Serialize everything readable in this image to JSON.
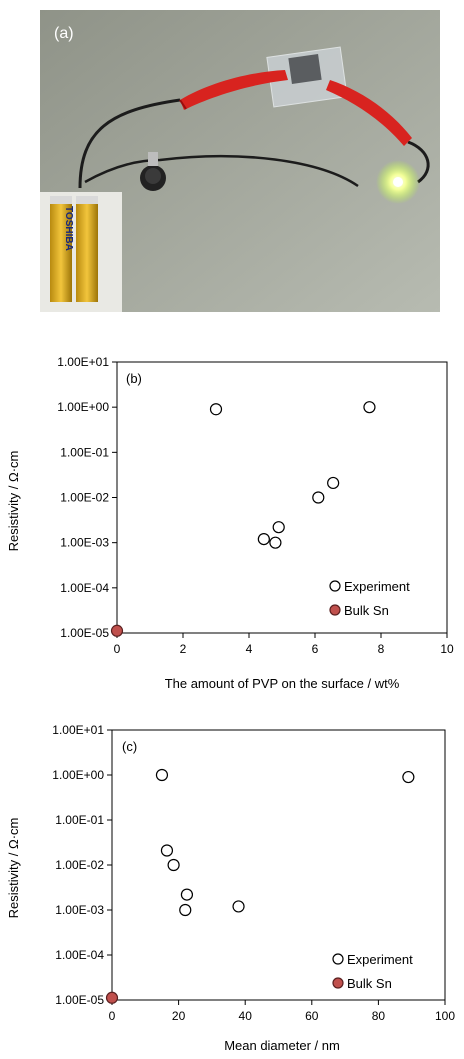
{
  "photo": {
    "panel_label": "(a)",
    "battery_text": "TOSHIBA"
  },
  "chart_data": [
    {
      "type": "scatter",
      "panel_label": "(b)",
      "xlabel": "The amount of PVP on the surface / wt%",
      "ylabel": "Resistivity / Ω·cm",
      "xlim": [
        0,
        10
      ],
      "ylim": [
        1e-05,
        10
      ],
      "y_scale": "log",
      "x_ticks": [
        "0",
        "2",
        "4",
        "6",
        "8",
        "10"
      ],
      "y_ticks": [
        "1.00E-05",
        "1.00E-04",
        "1.00E-03",
        "1.00E-02",
        "1.00E-01",
        "1.00E+00",
        "1.00E+01"
      ],
      "grid": false,
      "legend_position": "bottom-right",
      "series": [
        {
          "name": "Experiment",
          "marker": "open-circle",
          "color": "#000000",
          "points": [
            {
              "x": 3.0,
              "y": 0.9
            },
            {
              "x": 7.65,
              "y": 1.0
            },
            {
              "x": 6.55,
              "y": 0.021
            },
            {
              "x": 6.1,
              "y": 0.01
            },
            {
              "x": 4.9,
              "y": 0.0022
            },
            {
              "x": 4.45,
              "y": 0.0012
            },
            {
              "x": 4.8,
              "y": 0.001
            }
          ]
        },
        {
          "name": "Bulk Sn",
          "marker": "filled-circle",
          "color": "#c0504d",
          "points": [
            {
              "x": 0,
              "y": 1.12e-05
            }
          ]
        }
      ]
    },
    {
      "type": "scatter",
      "panel_label": "(c)",
      "xlabel": "Mean diameter / nm",
      "ylabel": "Resistivity / Ω·cm",
      "xlim": [
        0,
        100
      ],
      "ylim": [
        1e-05,
        10
      ],
      "y_scale": "log",
      "x_ticks": [
        "0",
        "20",
        "40",
        "60",
        "80",
        "100"
      ],
      "y_ticks": [
        "1.00E-05",
        "1.00E-04",
        "1.00E-03",
        "1.00E-02",
        "1.00E-01",
        "1.00E+00",
        "1.00E+01"
      ],
      "grid": false,
      "legend_position": "bottom-right",
      "series": [
        {
          "name": "Experiment",
          "marker": "open-circle",
          "color": "#000000",
          "points": [
            {
              "x": 15,
              "y": 1.0
            },
            {
              "x": 89,
              "y": 0.9
            },
            {
              "x": 16.5,
              "y": 0.021
            },
            {
              "x": 18.5,
              "y": 0.01
            },
            {
              "x": 22.5,
              "y": 0.0022
            },
            {
              "x": 22,
              "y": 0.001
            },
            {
              "x": 38,
              "y": 0.0012
            }
          ]
        },
        {
          "name": "Bulk Sn",
          "marker": "filled-circle",
          "color": "#c0504d",
          "points": [
            {
              "x": 0,
              "y": 1.12e-05
            }
          ]
        }
      ]
    }
  ]
}
